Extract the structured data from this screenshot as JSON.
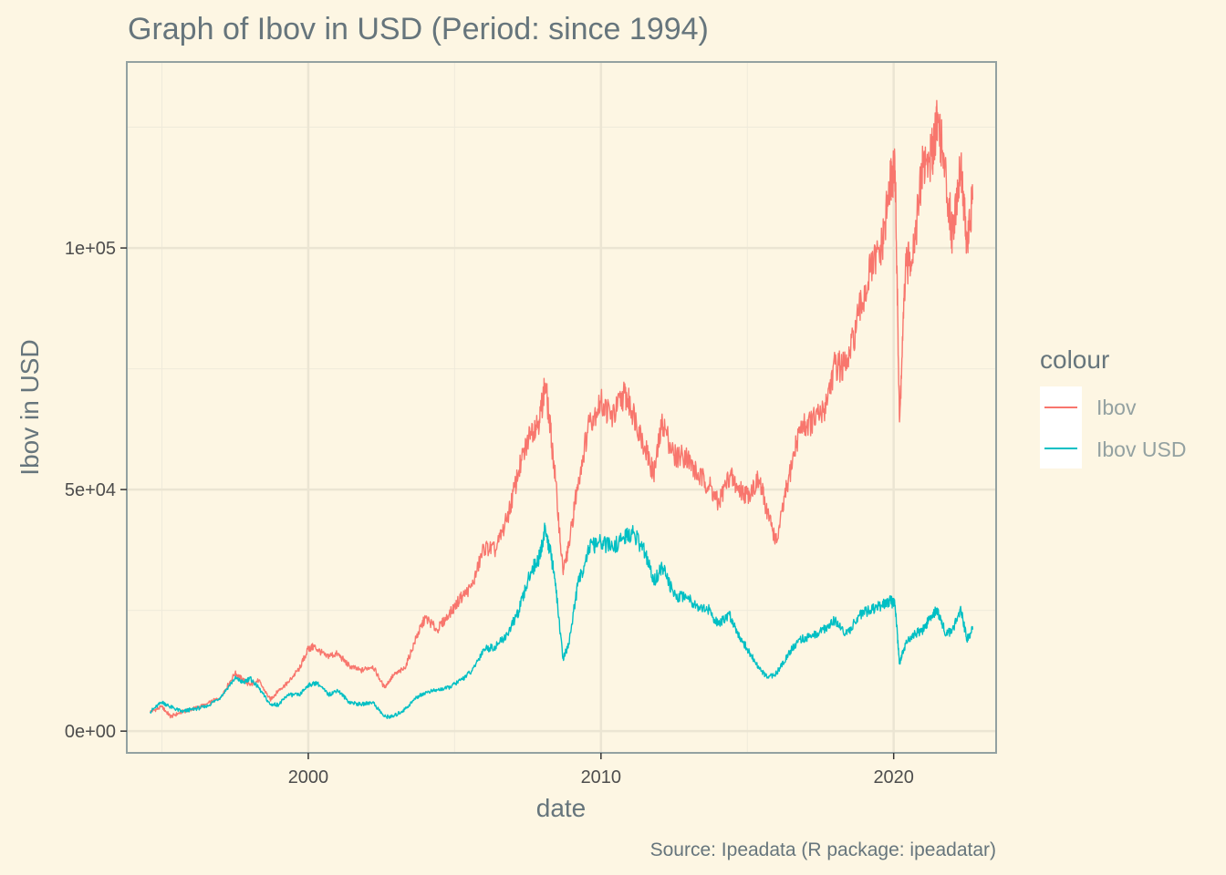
{
  "chart_data": {
    "type": "line",
    "title": "Graph of Ibov in USD (Period: since 1994)",
    "xlabel": "date",
    "ylabel": "Ibov in USD",
    "caption": "Source: Ipeadata (R package: ipeadatar)",
    "xlim": [
      1993.8,
      2023.5
    ],
    "ylim": [
      -4500,
      138500
    ],
    "x_ticks": [
      2000,
      2010,
      2020
    ],
    "x_tick_labels": [
      "2000",
      "2010",
      "2020"
    ],
    "y_ticks": [
      0,
      50000,
      100000
    ],
    "y_tick_labels": [
      "0e+00",
      "5e+04",
      "1e+05"
    ],
    "grid": true,
    "legend": {
      "title": "colour",
      "placement": "right"
    },
    "series": [
      {
        "name": "Ibov",
        "color": "#f8766d",
        "x": [
          1994.6,
          1995.0,
          1995.3,
          1995.7,
          1996.0,
          1996.5,
          1997.0,
          1997.5,
          1997.8,
          1998.0,
          1998.3,
          1998.7,
          1999.0,
          1999.3,
          1999.7,
          2000.0,
          2000.2,
          2000.6,
          2001.0,
          2001.4,
          2001.8,
          2002.2,
          2002.6,
          2002.9,
          2003.3,
          2003.7,
          2004.0,
          2004.4,
          2004.8,
          2005.2,
          2005.6,
          2006.0,
          2006.4,
          2006.8,
          2007.2,
          2007.6,
          2007.9,
          2008.1,
          2008.4,
          2008.7,
          2008.9,
          2009.2,
          2009.6,
          2010.0,
          2010.4,
          2010.8,
          2011.1,
          2011.5,
          2011.8,
          2012.1,
          2012.5,
          2012.9,
          2013.3,
          2013.7,
          2014.0,
          2014.4,
          2014.7,
          2015.0,
          2015.4,
          2015.7,
          2016.0,
          2016.4,
          2016.8,
          2017.2,
          2017.6,
          2018.0,
          2018.4,
          2018.8,
          2019.2,
          2019.6,
          2019.9,
          2020.05,
          2020.2,
          2020.4,
          2020.7,
          2021.0,
          2021.3,
          2021.5,
          2021.8,
          2022.0,
          2022.3,
          2022.5,
          2022.7
        ],
        "values": [
          4000,
          5000,
          3000,
          4000,
          4500,
          5500,
          7000,
          12000,
          10500,
          9500,
          10500,
          6500,
          8500,
          10000,
          13000,
          17000,
          17500,
          15500,
          16000,
          13500,
          12500,
          13500,
          9000,
          11500,
          13000,
          19500,
          23500,
          21000,
          24000,
          27500,
          30000,
          38000,
          37500,
          44000,
          54000,
          62000,
          64500,
          72000,
          55000,
          33000,
          38000,
          51000,
          64000,
          68000,
          65000,
          70000,
          66000,
          59000,
          53000,
          64000,
          57000,
          57000,
          53000,
          51000,
          47000,
          53000,
          50000,
          49000,
          52000,
          45000,
          39000,
          52000,
          63000,
          64000,
          66000,
          76000,
          75000,
          86000,
          95000,
          100000,
          114000,
          116000,
          64000,
          95000,
          101000,
          117000,
          119000,
          128000,
          113000,
          103000,
          118000,
          100000,
          110000
        ]
      },
      {
        "name": "Ibov USD",
        "color": "#00bfc4",
        "x": [
          1994.6,
          1995.0,
          1995.3,
          1995.7,
          1996.0,
          1996.5,
          1997.0,
          1997.5,
          1997.8,
          1998.0,
          1998.3,
          1998.7,
          1999.0,
          1999.3,
          1999.7,
          2000.0,
          2000.3,
          2000.7,
          2001.0,
          2001.4,
          2001.8,
          2002.2,
          2002.6,
          2002.9,
          2003.3,
          2003.7,
          2004.0,
          2004.4,
          2004.8,
          2005.2,
          2005.6,
          2006.0,
          2006.4,
          2006.8,
          2007.2,
          2007.6,
          2007.9,
          2008.1,
          2008.4,
          2008.7,
          2008.9,
          2009.2,
          2009.6,
          2010.0,
          2010.4,
          2010.8,
          2011.1,
          2011.5,
          2011.8,
          2012.1,
          2012.5,
          2012.9,
          2013.3,
          2013.7,
          2014.0,
          2014.4,
          2014.7,
          2015.0,
          2015.4,
          2015.7,
          2016.0,
          2016.4,
          2016.8,
          2017.2,
          2017.6,
          2018.0,
          2018.4,
          2018.8,
          2019.2,
          2019.6,
          2019.9,
          2020.05,
          2020.2,
          2020.4,
          2020.7,
          2021.0,
          2021.3,
          2021.5,
          2021.8,
          2022.0,
          2022.3,
          2022.5,
          2022.7
        ],
        "values": [
          4000,
          6000,
          5000,
          4000,
          4500,
          5000,
          7000,
          11000,
          10000,
          11000,
          9000,
          5500,
          5500,
          7500,
          7500,
          9500,
          10000,
          7500,
          8500,
          6000,
          5500,
          6000,
          3000,
          3000,
          4500,
          7000,
          8000,
          8500,
          9000,
          10500,
          12500,
          17000,
          17500,
          20000,
          25000,
          33000,
          36000,
          42000,
          33000,
          15000,
          18000,
          30000,
          38000,
          39000,
          38000,
          40000,
          41000,
          37000,
          31000,
          34000,
          28000,
          28000,
          26000,
          25000,
          22000,
          24000,
          20000,
          17000,
          13000,
          11000,
          12000,
          16000,
          19000,
          19500,
          21000,
          23000,
          20000,
          24000,
          25000,
          26000,
          27000,
          26000,
          14000,
          18000,
          20000,
          21000,
          24000,
          25000,
          20000,
          21000,
          25000,
          19000,
          21000
        ]
      }
    ]
  }
}
